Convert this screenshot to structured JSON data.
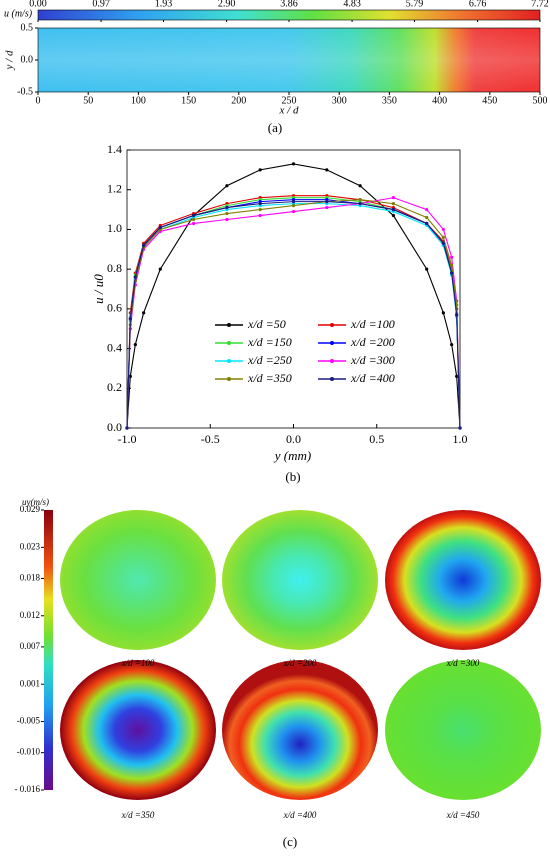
{
  "chart_data": [
    {
      "type": "contour",
      "caption": "(a)",
      "colorbar_label": "u (m/s)",
      "clim": [
        0,
        7.72
      ],
      "colorbar_ticks": [
        {
          "value": 0,
          "label": "0.00"
        },
        0.97,
        1.93,
        {
          "value": 2.9,
          "label": "2.90"
        },
        3.86,
        4.83,
        5.79,
        6.76,
        7.72
      ],
      "xlabel": "x / d",
      "ylabel": "y / d",
      "xlim": [
        0,
        500
      ],
      "ylim": [
        -0.5,
        0.5
      ],
      "xticks": [
        0,
        50,
        100,
        150,
        200,
        250,
        300,
        350,
        400,
        450,
        500
      ],
      "yticks": [
        -0.5,
        {
          "value": 0,
          "label": "0.0"
        },
        0.5
      ]
    },
    {
      "type": "line",
      "caption": "(b)",
      "xlabel": "y (mm)",
      "ylabel": "u / u0",
      "xlim": [
        -1,
        1
      ],
      "ylim": [
        0,
        1.4
      ],
      "xticks": [
        {
          "value": -1,
          "label": "-1.0"
        },
        -0.5,
        {
          "value": 0,
          "label": "0.0"
        },
        0.5,
        {
          "value": 1,
          "label": "1.0"
        }
      ],
      "yticks": [
        {
          "value": 0,
          "label": "0.0"
        },
        0.2,
        0.4,
        0.6,
        0.8,
        {
          "value": 1,
          "label": "1.0"
        },
        1.2,
        1.4
      ],
      "x": [
        -1,
        -0.98,
        -0.95,
        -0.9,
        -0.8,
        -0.6,
        -0.4,
        -0.2,
        0,
        0.2,
        0.4,
        0.6,
        0.8,
        0.9,
        0.95,
        0.98,
        1
      ],
      "series": [
        {
          "name": "x/d =50",
          "color": "#000000",
          "values": [
            0,
            0.26,
            0.42,
            0.58,
            0.8,
            1.07,
            1.22,
            1.3,
            1.33,
            1.3,
            1.22,
            1.07,
            0.8,
            0.58,
            0.42,
            0.26,
            0
          ]
        },
        {
          "name": "x/d =100",
          "color": "#e00000",
          "values": [
            0,
            0.58,
            0.78,
            0.93,
            1.02,
            1.08,
            1.13,
            1.16,
            1.17,
            1.17,
            1.15,
            1.11,
            1.03,
            0.94,
            0.8,
            0.6,
            0
          ]
        },
        {
          "name": "x/d =150",
          "color": "#33dd33",
          "values": [
            0,
            0.56,
            0.77,
            0.92,
            1.01,
            1.07,
            1.12,
            1.15,
            1.16,
            1.16,
            1.14,
            1.1,
            1.03,
            0.93,
            0.79,
            0.58,
            0
          ]
        },
        {
          "name": "x/d =200",
          "color": "#0000ff",
          "values": [
            0,
            0.55,
            0.76,
            0.92,
            1.01,
            1.07,
            1.11,
            1.14,
            1.15,
            1.15,
            1.13,
            1.1,
            1.03,
            0.93,
            0.78,
            0.57,
            0
          ]
        },
        {
          "name": "x/d =250",
          "color": "#00e5ff",
          "values": [
            0,
            0.54,
            0.75,
            0.91,
            1.0,
            1.06,
            1.1,
            1.12,
            1.13,
            1.13,
            1.12,
            1.09,
            1.02,
            0.92,
            0.77,
            0.56,
            0
          ]
        },
        {
          "name": "x/d =300",
          "color": "#ff00ff",
          "values": [
            0,
            0.5,
            0.72,
            0.9,
            0.99,
            1.03,
            1.05,
            1.07,
            1.09,
            1.11,
            1.13,
            1.16,
            1.1,
            1.0,
            0.86,
            0.64,
            0
          ]
        },
        {
          "name": "x/d =350",
          "color": "#808000",
          "values": [
            0,
            0.52,
            0.74,
            0.91,
            1.0,
            1.05,
            1.08,
            1.1,
            1.12,
            1.14,
            1.15,
            1.13,
            1.06,
            0.96,
            0.82,
            0.62,
            0
          ]
        },
        {
          "name": "x/d =400",
          "color": "#1a1a80",
          "values": [
            0,
            0.55,
            0.76,
            0.92,
            1.01,
            1.07,
            1.11,
            1.13,
            1.14,
            1.14,
            1.13,
            1.1,
            1.03,
            0.93,
            0.78,
            0.57,
            0
          ]
        }
      ]
    },
    {
      "type": "contour-panels",
      "caption": "(c)",
      "colorbar_label": "uy(m/s)",
      "clim": [
        -0.016,
        0.029
      ],
      "colorbar_ticks": [
        0.029,
        0.023,
        0.018,
        0.012,
        0.007,
        0.001,
        -0.005,
        {
          "value": -0.01,
          "label": "-0.010"
        },
        {
          "value": -0.016,
          "label": "- 0.016"
        }
      ],
      "panels": [
        "x/d =100",
        "x/d =200",
        "x/d =300",
        "x/d =350",
        "x/d =400",
        "x/d =450"
      ]
    }
  ]
}
